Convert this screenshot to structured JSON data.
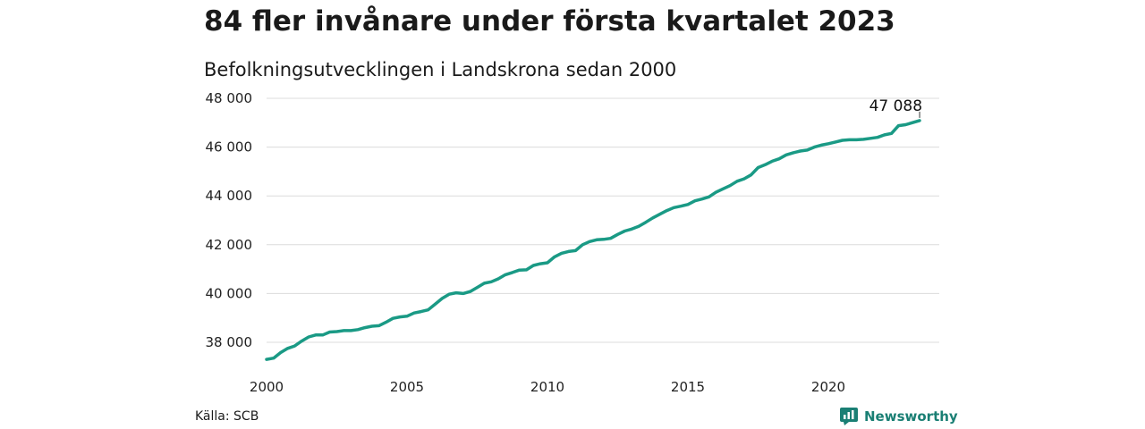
{
  "title": "84 fler invånare under första kvartalet 2023",
  "subtitle": "Befolkningsutvecklingen i Landskrona sedan 2000",
  "source": "Källa: SCB",
  "brand": "Newsworthy",
  "colors": {
    "line": "#1a9a85",
    "brand": "#1a7f74",
    "grid": "#dcdcdc"
  },
  "chart_data": {
    "type": "line",
    "title": "84 fler invånare under första kvartalet 2023",
    "subtitle": "Befolkningsutvecklingen i Landskrona sedan 2000",
    "xlabel": "",
    "ylabel": "",
    "xlim": [
      2000,
      2023.25
    ],
    "ylim": [
      37000,
      48000
    ],
    "x_ticks": [
      2000,
      2005,
      2010,
      2015,
      2020
    ],
    "x_tick_labels": [
      "2000",
      "2005",
      "2010",
      "2015",
      "2020"
    ],
    "y_ticks": [
      38000,
      40000,
      42000,
      44000,
      46000,
      48000
    ],
    "y_tick_labels": [
      "38 000",
      "40 000",
      "42 000",
      "44 000",
      "46 000",
      "48 000"
    ],
    "grid": true,
    "end_label": "47 088",
    "series": [
      {
        "x": [
          2000.0,
          2000.25,
          2000.5,
          2000.75,
          2001.0,
          2001.25,
          2001.5,
          2001.75,
          2002.0,
          2002.25,
          2002.5,
          2002.75,
          2003.0,
          2003.25,
          2003.5,
          2003.75,
          2004.0,
          2004.25,
          2004.5,
          2004.75,
          2005.0,
          2005.25,
          2005.5,
          2005.75,
          2006.0,
          2006.25,
          2006.5,
          2006.75,
          2007.0,
          2007.25,
          2007.5,
          2007.75,
          2008.0,
          2008.25,
          2008.5,
          2008.75,
          2009.0,
          2009.25,
          2009.5,
          2009.75,
          2010.0,
          2010.25,
          2010.5,
          2010.75,
          2011.0,
          2011.25,
          2011.5,
          2011.75,
          2012.0,
          2012.25,
          2012.5,
          2012.75,
          2013.0,
          2013.25,
          2013.5,
          2013.75,
          2014.0,
          2014.25,
          2014.5,
          2014.75,
          2015.0,
          2015.25,
          2015.5,
          2015.75,
          2016.0,
          2016.25,
          2016.5,
          2016.75,
          2017.0,
          2017.25,
          2017.5,
          2017.75,
          2018.0,
          2018.25,
          2018.5,
          2018.75,
          2019.0,
          2019.25,
          2019.5,
          2019.75,
          2020.0,
          2020.25,
          2020.5,
          2020.75,
          2021.0,
          2021.25,
          2021.5,
          2021.75,
          2022.0,
          2022.25,
          2022.5,
          2022.75,
          2023.0,
          2023.25
        ],
        "y": [
          37300,
          37350,
          37580,
          37750,
          37850,
          38050,
          38220,
          38300,
          38300,
          38420,
          38440,
          38480,
          38480,
          38520,
          38600,
          38660,
          38680,
          38820,
          38980,
          39040,
          39070,
          39200,
          39260,
          39330,
          39560,
          39800,
          39970,
          40030,
          40000,
          40080,
          40250,
          40420,
          40480,
          40600,
          40770,
          40860,
          40960,
          40970,
          41150,
          41220,
          41260,
          41500,
          41650,
          41720,
          41760,
          42000,
          42130,
          42200,
          42220,
          42260,
          42420,
          42560,
          42640,
          42750,
          42920,
          43100,
          43250,
          43400,
          43520,
          43580,
          43650,
          43800,
          43870,
          43960,
          44150,
          44290,
          44420,
          44600,
          44700,
          44860,
          45160,
          45280,
          45420,
          45520,
          45680,
          45770,
          45840,
          45880,
          46000,
          46080,
          46140,
          46210,
          46280,
          46300,
          46300,
          46320,
          46360,
          46400,
          46500,
          46560,
          46880,
          46920,
          47004,
          47088
        ]
      }
    ]
  }
}
